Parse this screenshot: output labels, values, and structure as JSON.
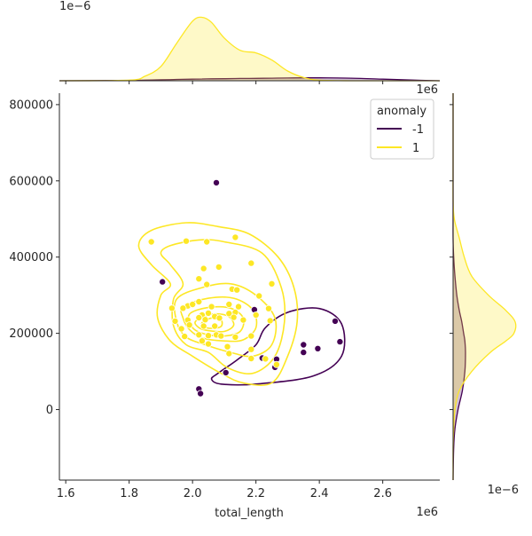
{
  "chart_data": {
    "type": "scatter",
    "subtype": "jointplot",
    "xlabel": "total_length",
    "ylabel": "",
    "x_offset_label": "1e6",
    "y_offset_label": "1e6",
    "top_marginal_label": "1e−6",
    "right_marginal_label": "1e−6",
    "xlim": [
      1.58,
      2.78
    ],
    "ylim": [
      -185000,
      830000
    ],
    "xticks": [
      1.6,
      1.8,
      2.0,
      2.2,
      2.4,
      2.6
    ],
    "xtick_labels": [
      "1.6",
      "1.8",
      "2.0",
      "2.2",
      "2.4",
      "2.6"
    ],
    "yticks": [
      0,
      200000,
      400000,
      600000,
      800000
    ],
    "ytick_labels": [
      "0",
      "200000",
      "400000",
      "600000",
      "800000"
    ],
    "grid": false,
    "legend": {
      "title": "anomaly",
      "placement": "top-right",
      "entries": [
        {
          "label": "-1",
          "color": "#440154"
        },
        {
          "label": "1",
          "color": "#fde725"
        }
      ]
    },
    "series": [
      {
        "name": "-1",
        "color": "#440154",
        "points": [
          [
            2.075,
            595000
          ],
          [
            1.905,
            335000
          ],
          [
            2.195,
            262000
          ],
          [
            2.45,
            232000
          ],
          [
            2.465,
            178000
          ],
          [
            2.35,
            170000
          ],
          [
            2.395,
            160000
          ],
          [
            2.35,
            150000
          ],
          [
            2.265,
            132000
          ],
          [
            2.26,
            111000
          ],
          [
            2.105,
            97000
          ],
          [
            2.02,
            54000
          ],
          [
            2.025,
            42000
          ],
          [
            2.22,
            135000
          ]
        ],
        "kde_contours": [
          [
            [
              2.08,
              95000
            ],
            [
              2.14,
              130000
            ],
            [
              2.2,
              170000
            ],
            [
              2.23,
              215000
            ],
            [
              2.3,
              255000
            ],
            [
              2.4,
              265000
            ],
            [
              2.47,
              225000
            ],
            [
              2.47,
              140000
            ],
            [
              2.38,
              88000
            ],
            [
              2.2,
              67000
            ],
            [
              2.09,
              67000
            ],
            [
              2.06,
              80000
            ],
            [
              2.08,
              95000
            ]
          ]
        ]
      },
      {
        "name": "1",
        "color": "#fde725",
        "points": [
          [
            1.87,
            440000
          ],
          [
            1.98,
            442000
          ],
          [
            2.045,
            440000
          ],
          [
            2.135,
            452000
          ],
          [
            2.083,
            374000
          ],
          [
            2.035,
            370000
          ],
          [
            2.185,
            384000
          ],
          [
            2.02,
            343000
          ],
          [
            2.045,
            328000
          ],
          [
            2.125,
            316000
          ],
          [
            2.14,
            314000
          ],
          [
            2.25,
            330000
          ],
          [
            2.21,
            298000
          ],
          [
            2.02,
            283000
          ],
          [
            1.985,
            272000
          ],
          [
            1.97,
            266000
          ],
          [
            2.0,
            276000
          ],
          [
            2.06,
            270000
          ],
          [
            2.115,
            276000
          ],
          [
            2.145,
            270000
          ],
          [
            1.935,
            266000
          ],
          [
            2.24,
            265000
          ],
          [
            2.2,
            248000
          ],
          [
            2.135,
            255000
          ],
          [
            2.115,
            252000
          ],
          [
            2.05,
            253000
          ],
          [
            2.03,
            248000
          ],
          [
            2.02,
            241000
          ],
          [
            2.04,
            236000
          ],
          [
            2.07,
            244000
          ],
          [
            1.985,
            235000
          ],
          [
            1.945,
            232000
          ],
          [
            2.085,
            240000
          ],
          [
            2.13,
            242000
          ],
          [
            2.16,
            235000
          ],
          [
            2.245,
            233000
          ],
          [
            1.99,
            222000
          ],
          [
            2.035,
            219000
          ],
          [
            2.07,
            219000
          ],
          [
            1.965,
            212000
          ],
          [
            2.02,
            196000
          ],
          [
            2.05,
            194000
          ],
          [
            2.075,
            196000
          ],
          [
            2.09,
            193000
          ],
          [
            2.135,
            190000
          ],
          [
            2.185,
            193000
          ],
          [
            1.975,
            192000
          ],
          [
            2.03,
            180000
          ],
          [
            2.05,
            172000
          ],
          [
            2.11,
            165000
          ],
          [
            2.185,
            158000
          ],
          [
            2.115,
            147000
          ],
          [
            2.185,
            134000
          ],
          [
            2.23,
            133000
          ],
          [
            2.265,
            118000
          ]
        ],
        "kde_contours": [
          [
            [
              1.87,
              470000
            ],
            [
              1.98,
              490000
            ],
            [
              2.08,
              480000
            ],
            [
              2.18,
              460000
            ],
            [
              2.27,
              400000
            ],
            [
              2.32,
              320000
            ],
            [
              2.33,
              230000
            ],
            [
              2.3,
              140000
            ],
            [
              2.25,
              70000
            ],
            [
              2.16,
              70000
            ],
            [
              2.09,
              95000
            ],
            [
              2.0,
              140000
            ],
            [
              1.93,
              180000
            ],
            [
              1.89,
              240000
            ],
            [
              1.9,
              300000
            ],
            [
              1.93,
              330000
            ],
            [
              1.87,
              380000
            ],
            [
              1.83,
              430000
            ],
            [
              1.87,
              470000
            ]
          ],
          [
            [
              1.93,
              430000
            ],
            [
              2.02,
              445000
            ],
            [
              2.1,
              440000
            ],
            [
              2.22,
              410000
            ],
            [
              2.28,
              320000
            ],
            [
              2.29,
              230000
            ],
            [
              2.26,
              140000
            ],
            [
              2.19,
              95000
            ],
            [
              2.11,
              110000
            ],
            [
              2.05,
              150000
            ],
            [
              1.98,
              170000
            ],
            [
              1.94,
              220000
            ],
            [
              1.94,
              290000
            ],
            [
              1.97,
              330000
            ],
            [
              1.93,
              380000
            ],
            [
              1.9,
              410000
            ],
            [
              1.93,
              430000
            ]
          ],
          [
            [
              1.95,
              290000
            ],
            [
              2.03,
              320000
            ],
            [
              2.12,
              330000
            ],
            [
              2.2,
              300000
            ],
            [
              2.26,
              240000
            ],
            [
              2.25,
              170000
            ],
            [
              2.19,
              140000
            ],
            [
              2.12,
              150000
            ],
            [
              2.04,
              170000
            ],
            [
              1.98,
              190000
            ],
            [
              1.95,
              230000
            ],
            [
              1.95,
              290000
            ]
          ],
          [
            [
              1.97,
              270000
            ],
            [
              2.05,
              292000
            ],
            [
              2.13,
              292000
            ],
            [
              2.19,
              262000
            ],
            [
              2.2,
              215000
            ],
            [
              2.16,
              183000
            ],
            [
              2.1,
              180000
            ],
            [
              2.03,
              188000
            ],
            [
              1.99,
              210000
            ],
            [
              1.97,
              240000
            ],
            [
              1.97,
              270000
            ]
          ],
          [
            [
              1.99,
              250000
            ],
            [
              2.05,
              268000
            ],
            [
              2.12,
              266000
            ],
            [
              2.16,
              240000
            ],
            [
              2.15,
              205000
            ],
            [
              2.1,
              193000
            ],
            [
              2.04,
              198000
            ],
            [
              2.0,
              215000
            ],
            [
              1.99,
              250000
            ]
          ],
          [
            [
              2.01,
              232000
            ],
            [
              2.06,
              250000
            ],
            [
              2.11,
              246000
            ],
            [
              2.13,
              222000
            ],
            [
              2.1,
              205000
            ],
            [
              2.05,
              207000
            ],
            [
              2.02,
              215000
            ],
            [
              2.01,
              232000
            ]
          ],
          [
            [
              2.03,
              228000
            ],
            [
              2.06,
              240000
            ],
            [
              2.09,
              235000
            ],
            [
              2.09,
              218000
            ],
            [
              2.06,
              213000
            ],
            [
              2.035,
              218000
            ],
            [
              2.03,
              228000
            ]
          ]
        ]
      }
    ],
    "marginal_x": {
      "x": [
        1.58,
        1.8,
        1.85,
        1.9,
        1.95,
        2.0,
        2.03,
        2.06,
        2.1,
        2.15,
        2.2,
        2.25,
        2.3,
        2.35,
        2.4,
        2.5,
        2.6,
        2.7,
        2.78
      ],
      "density_1": [
        0,
        0.01,
        0.07,
        0.22,
        0.58,
        0.92,
        0.98,
        0.9,
        0.66,
        0.47,
        0.43,
        0.32,
        0.15,
        0.05,
        0.01,
        0,
        0,
        0,
        0
      ],
      "density_-1": [
        0,
        0.005,
        0.01,
        0.015,
        0.02,
        0.025,
        0.028,
        0.03,
        0.032,
        0.035,
        0.037,
        0.04,
        0.043,
        0.045,
        0.045,
        0.04,
        0.025,
        0.01,
        0
      ]
    },
    "marginal_y": {
      "y": [
        -185000,
        -100000,
        -50000,
        0,
        50000,
        100000,
        150000,
        180000,
        200000,
        230000,
        260000,
        300000,
        350000,
        400000,
        450000,
        500000,
        550000,
        650000,
        830000
      ],
      "density_1": [
        0,
        0.0,
        0.01,
        0.03,
        0.1,
        0.3,
        0.6,
        0.85,
        0.98,
        1.0,
        0.85,
        0.57,
        0.3,
        0.18,
        0.1,
        0.02,
        0,
        0,
        0
      ],
      "density_-1": [
        0,
        0.01,
        0.03,
        0.08,
        0.15,
        0.19,
        0.2,
        0.19,
        0.17,
        0.14,
        0.1,
        0.06,
        0.03,
        0.01,
        0,
        0,
        0,
        0,
        0
      ]
    }
  }
}
